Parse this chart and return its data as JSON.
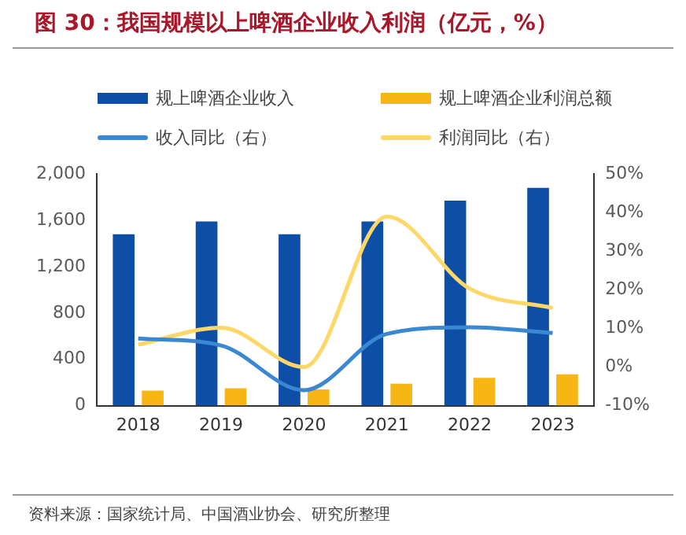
{
  "chart_data": {
    "type": "bar",
    "title": "图 30：我国规模以上啤酒企业收入利润（亿元，%）",
    "categories": [
      "2018",
      "2019",
      "2020",
      "2021",
      "2022",
      "2023"
    ],
    "series": [
      {
        "name": "规上啤酒企业收入",
        "color": "#0d4ea6",
        "values": [
          1480,
          1590,
          1480,
          1590,
          1770,
          1880
        ]
      },
      {
        "name": "规上啤酒企业利润总额",
        "color": "#f7b614",
        "values": [
          130,
          150,
          140,
          190,
          240,
          270
        ]
      },
      {
        "name": "收入同比（右）",
        "type": "line",
        "axis": "y2",
        "color": "#3a87d2",
        "values": [
          7.4,
          5.6,
          -6.0,
          8.6,
          10.3,
          8.8
        ]
      },
      {
        "name": "利润同比（右）",
        "type": "line",
        "axis": "y2",
        "color": "#ffd766",
        "values": [
          5.8,
          10.2,
          0,
          39,
          20.3,
          15.3
        ]
      }
    ],
    "ylim": [
      0,
      2000
    ],
    "yticks": [
      0,
      400,
      800,
      {
        "value": 1200,
        "label": "1,200"
      },
      {
        "value": 1600,
        "label": "1,600"
      },
      {
        "value": 2000,
        "label": "2,000"
      }
    ],
    "y2lim": [
      -10,
      50
    ],
    "y2ticks": [
      {
        "value": -10,
        "label": "-10%"
      },
      {
        "value": 0,
        "label": "0%"
      },
      {
        "value": 10,
        "label": "10%"
      },
      {
        "value": 20,
        "label": "20%"
      },
      {
        "value": 30,
        "label": "30%"
      },
      {
        "value": 40,
        "label": "40%"
      },
      {
        "value": 50,
        "label": "50%"
      }
    ],
    "legend": "top",
    "marker": "none",
    "line_style": "solid",
    "annotations": [
      "资料来源：国家统计局、中国酒业协会、研究所整理"
    ]
  }
}
